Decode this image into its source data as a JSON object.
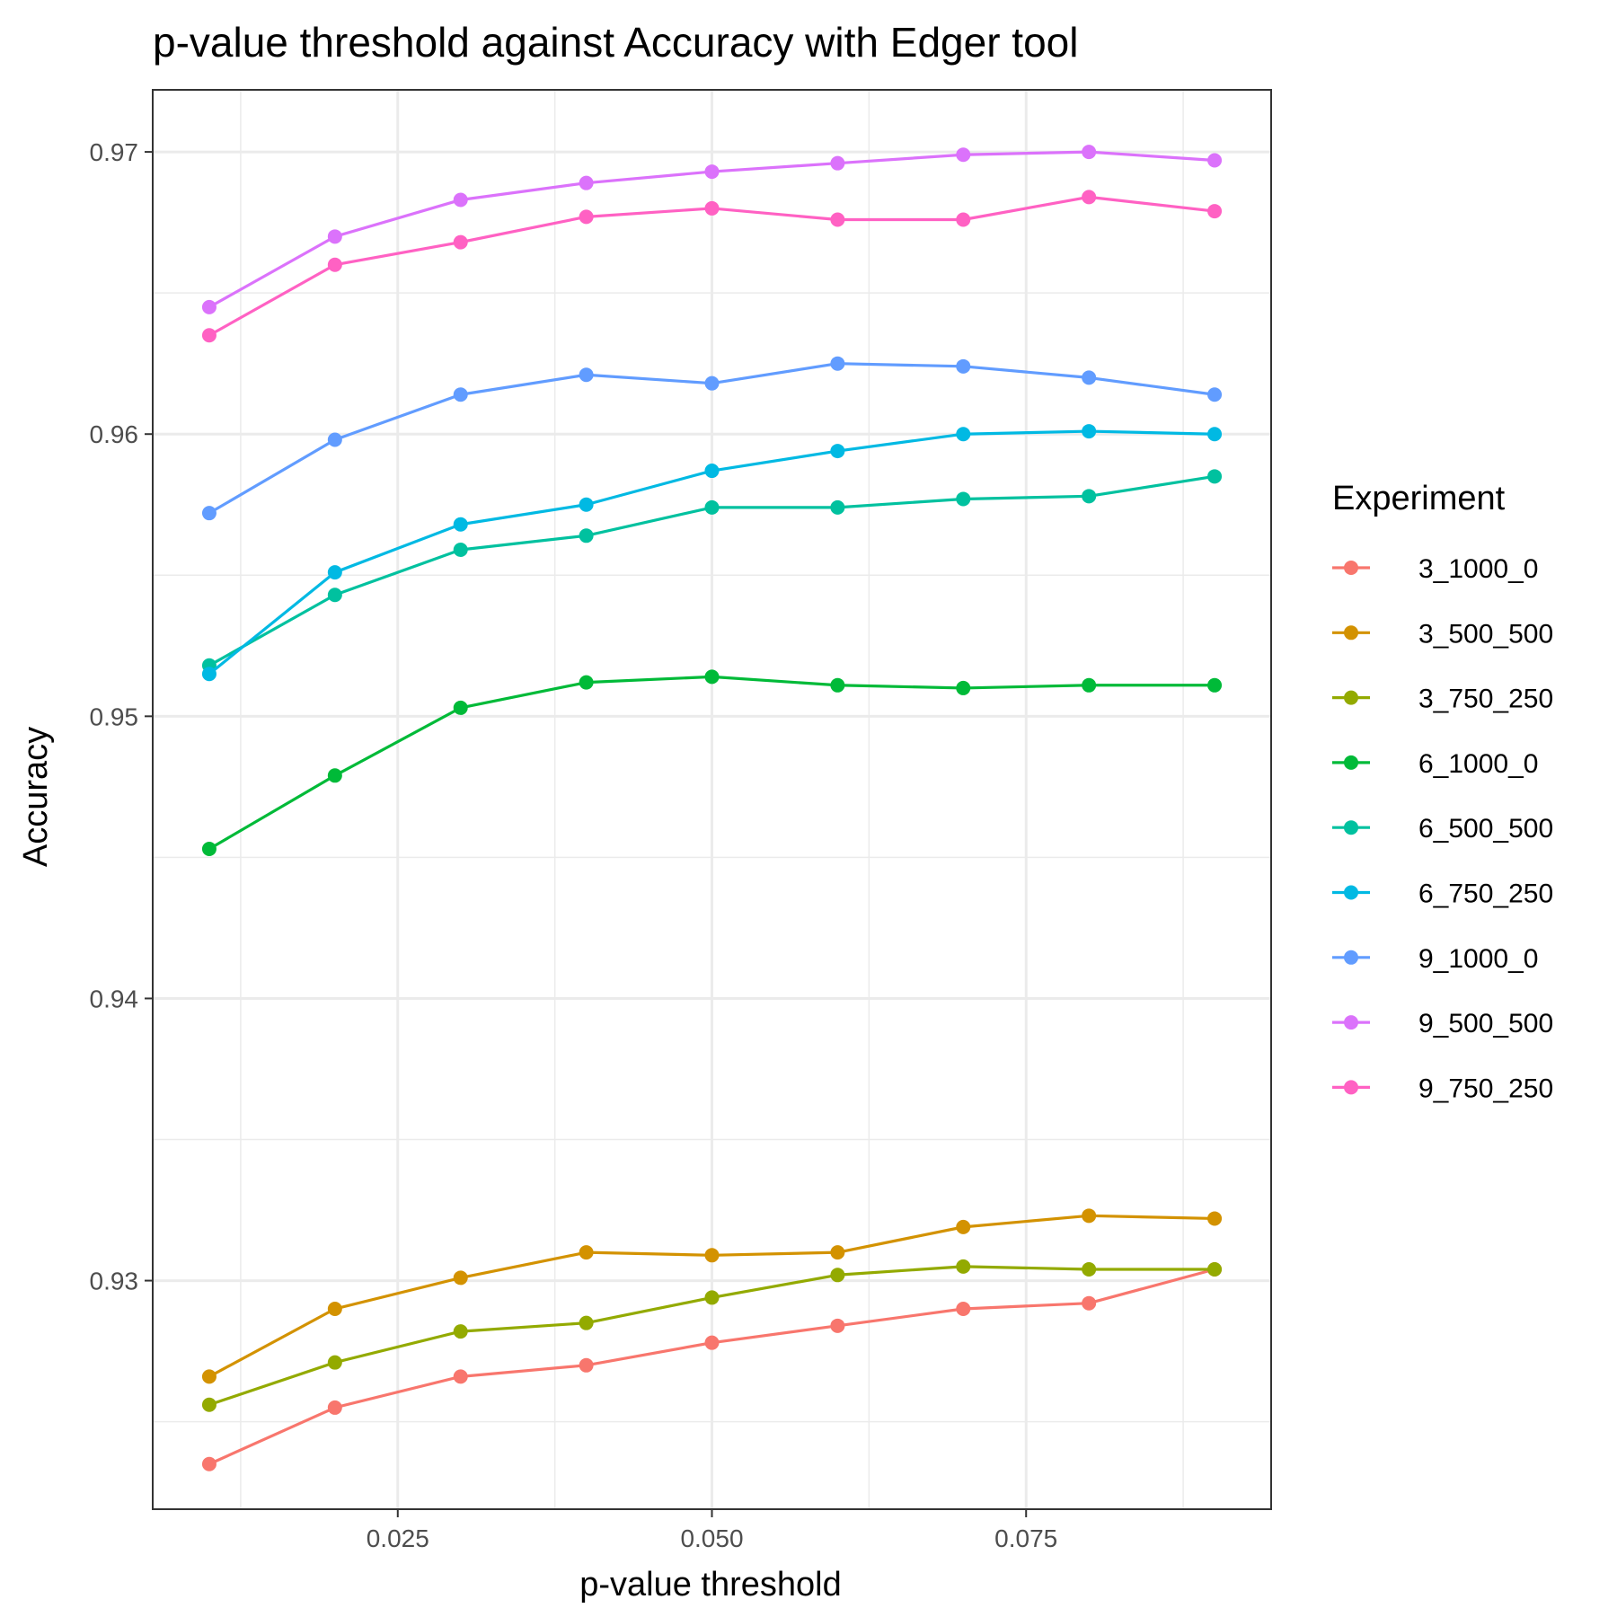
{
  "chart_data": {
    "type": "line",
    "title": "p-value threshold against Accuracy with Edger tool",
    "xlabel": "p-value threshold",
    "ylabel": "Accuracy",
    "x": [
      0.01,
      0.02,
      0.03,
      0.04,
      0.05,
      0.06,
      0.07,
      0.08,
      0.09
    ],
    "xlim": [
      0.0055,
      0.0945
    ],
    "ylim": [
      0.9219,
      0.9722
    ],
    "x_ticks": [
      0.025,
      0.05,
      0.075
    ],
    "x_tick_labels": [
      "0.025",
      "0.050",
      "0.075"
    ],
    "y_ticks": [
      0.93,
      0.94,
      0.95,
      0.96,
      0.97
    ],
    "y_tick_labels": [
      "0.93",
      "0.94",
      "0.95",
      "0.96",
      "0.97"
    ],
    "grid": true,
    "legend": {
      "title": "Experiment",
      "position": "right"
    },
    "series": [
      {
        "name": "3_1000_0",
        "color": "#F8766D",
        "values": [
          0.9235,
          0.9255,
          0.9266,
          0.927,
          0.9278,
          0.9284,
          0.929,
          0.9292,
          0.9304
        ]
      },
      {
        "name": "3_500_500",
        "color": "#D39200",
        "values": [
          0.9266,
          0.929,
          0.9301,
          0.931,
          0.9309,
          0.931,
          0.9319,
          0.9323,
          0.9322
        ]
      },
      {
        "name": "3_750_250",
        "color": "#93AA00",
        "values": [
          0.9256,
          0.9271,
          0.9282,
          0.9285,
          0.9294,
          0.9302,
          0.9305,
          0.9304,
          0.9304
        ]
      },
      {
        "name": "6_1000_0",
        "color": "#00BA38",
        "values": [
          0.9453,
          0.9479,
          0.9503,
          0.9512,
          0.9514,
          0.9511,
          0.951,
          0.9511,
          0.9511
        ]
      },
      {
        "name": "6_500_500",
        "color": "#00C19F",
        "values": [
          0.9518,
          0.9543,
          0.9559,
          0.9564,
          0.9574,
          0.9574,
          0.9577,
          0.9578,
          0.9585
        ]
      },
      {
        "name": "6_750_250",
        "color": "#00B9E3",
        "values": [
          0.9515,
          0.9551,
          0.9568,
          0.9575,
          0.9587,
          0.9594,
          0.96,
          0.9601,
          0.96
        ]
      },
      {
        "name": "9_1000_0",
        "color": "#619CFF",
        "values": [
          0.9572,
          0.9598,
          0.9614,
          0.9621,
          0.9618,
          0.9625,
          0.9624,
          0.962,
          0.9614
        ]
      },
      {
        "name": "9_500_500",
        "color": "#DB72FB",
        "values": [
          0.9645,
          0.967,
          0.9683,
          0.9689,
          0.9693,
          0.9696,
          0.9699,
          0.97,
          0.9697
        ]
      },
      {
        "name": "9_750_250",
        "color": "#FF61C3",
        "values": [
          0.9635,
          0.966,
          0.9668,
          0.9677,
          0.968,
          0.9676,
          0.9676,
          0.9684,
          0.9679
        ]
      }
    ]
  }
}
